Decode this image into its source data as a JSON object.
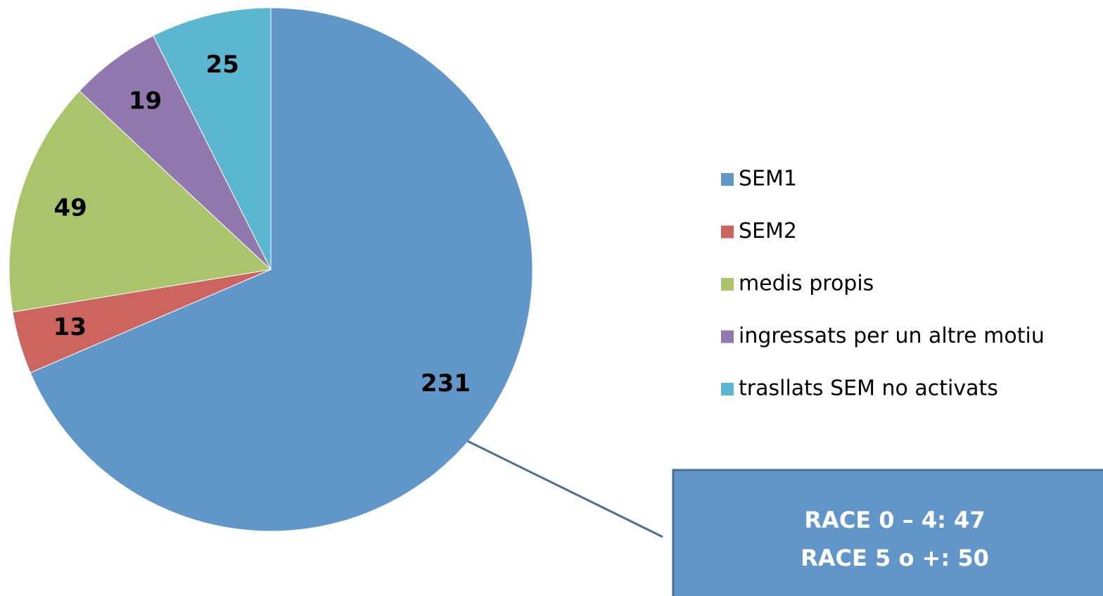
{
  "chart_data": {
    "type": "pie",
    "categories": [
      "SEM1",
      "SEM2",
      "medis propis",
      "ingressats per un altre motiu",
      "trasllats SEM no activats"
    ],
    "values": [
      231,
      13,
      49,
      19,
      25
    ],
    "colors": [
      "#6196c9",
      "#cc6560",
      "#aac46c",
      "#9179b0",
      "#5bb6d0"
    ],
    "legend": "right",
    "annotations": [
      "RACE 0 – 4: 47",
      "RACE 5 o +: 50"
    ]
  }
}
